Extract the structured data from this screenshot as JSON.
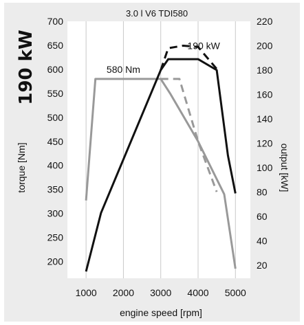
{
  "chart_data": {
    "type": "line",
    "title": "3.0 l V6 TDI580",
    "big_label": "190 kW",
    "xlabel": "engine speed [rpm]",
    "ylabel_left": "torque [Nm]",
    "ylabel_right": "output [kW]",
    "xlim": [
      500,
      5400
    ],
    "ylim_left": [
      165,
      700
    ],
    "ylim_right": [
      9.4,
      220
    ],
    "x_ticks": [
      1000,
      2000,
      3000,
      4000,
      5000
    ],
    "y_left_ticks": [
      200,
      250,
      300,
      350,
      400,
      450,
      500,
      550,
      600,
      650,
      700
    ],
    "y_right_ticks": [
      20,
      40,
      60,
      80,
      100,
      120,
      140,
      160,
      180,
      200,
      220
    ],
    "grid": "vertical",
    "annotations": [
      {
        "text": "580 Nm",
        "x": 2000,
        "y": 600,
        "axis": "left"
      },
      {
        "text": "190 kW",
        "x": 4150,
        "y": 200,
        "axis": "right"
      }
    ],
    "series": [
      {
        "axis": "left",
        "color": "#999999",
        "style": "solid",
        "x": [
          1000,
          1250,
          3000,
          3250,
          4000,
          4700,
          5000
        ],
        "y": [
          327,
          580,
          580,
          550,
          450,
          340,
          185
        ]
      },
      {
        "axis": "left",
        "color": "#999999",
        "style": "dashed",
        "x": [
          3000,
          3250,
          3500,
          4000,
          4500
        ],
        "y": [
          580,
          580,
          580,
          450,
          345
        ]
      },
      {
        "axis": "right",
        "color": "#111111",
        "style": "solid",
        "x": [
          1000,
          1400,
          3000,
          3200,
          4000,
          4500,
          4800,
          5000
        ],
        "y": [
          15,
          63,
          180,
          189,
          189,
          180,
          110,
          79
        ]
      },
      {
        "axis": "right",
        "color": "#111111",
        "style": "dashed",
        "x": [
          3000,
          3200,
          3600,
          4000,
          4500
        ],
        "y": [
          180,
          198,
          200,
          199,
          181
        ]
      }
    ]
  }
}
